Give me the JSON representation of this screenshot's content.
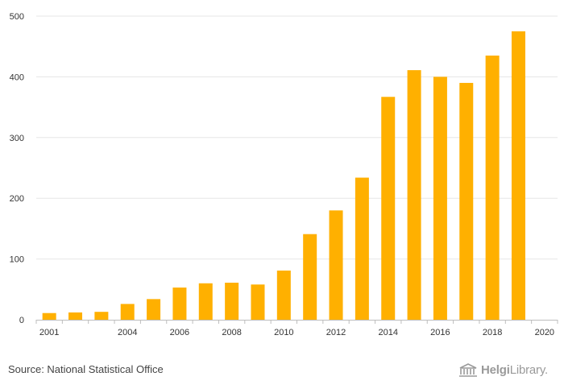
{
  "chart_data": {
    "type": "bar",
    "title": "",
    "xlabel": "",
    "ylabel": "",
    "categories": [
      "2001",
      "2002",
      "2003",
      "2004",
      "2005",
      "2006",
      "2007",
      "2008",
      "2009",
      "2010",
      "2011",
      "2012",
      "2013",
      "2014",
      "2015",
      "2016",
      "2017",
      "2018",
      "2019",
      "2020"
    ],
    "values": [
      11,
      12,
      13,
      26,
      34,
      53,
      60,
      61,
      58,
      81,
      141,
      180,
      234,
      367,
      411,
      400,
      390,
      435,
      475,
      0
    ],
    "ylim": [
      0,
      500
    ],
    "yticks": [
      "0",
      "100",
      "200",
      "300",
      "400",
      "500"
    ],
    "xtick_labels": [
      "2001",
      "2004",
      "2006",
      "2008",
      "2010",
      "2012",
      "2014",
      "2016",
      "2018",
      "2020"
    ],
    "grid": true,
    "bar_color": "#FFB000"
  },
  "footer": {
    "source": "Source: National Statistical Office",
    "logo": {
      "bold": "Helgi",
      "light": "Library."
    }
  }
}
